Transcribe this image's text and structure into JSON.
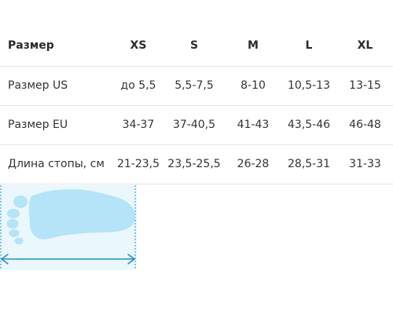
{
  "size_table": {
    "header": {
      "label": "Размер",
      "sizes": [
        "XS",
        "S",
        "M",
        "L",
        "XL"
      ]
    },
    "rows": [
      {
        "label": "Размер US",
        "values": [
          "до 5,5",
          "5,5-7,5",
          "8-10",
          "10,5-13",
          "13-15"
        ]
      },
      {
        "label": "Размер EU",
        "values": [
          "34-37",
          "37-40,5",
          "41-43",
          "43,5-46",
          "46-48"
        ]
      },
      {
        "label": "Длина стопы, см",
        "values": [
          "21-23,5",
          "23,5-25,5",
          "26-28",
          "28,5-31",
          "31-33"
        ]
      }
    ]
  },
  "foot_illustration": {
    "icon": "foot-length-icon",
    "foot_color": "#b5e3f7",
    "background_color": "#eaf7fc",
    "arrow_color": "#1e90c8"
  }
}
